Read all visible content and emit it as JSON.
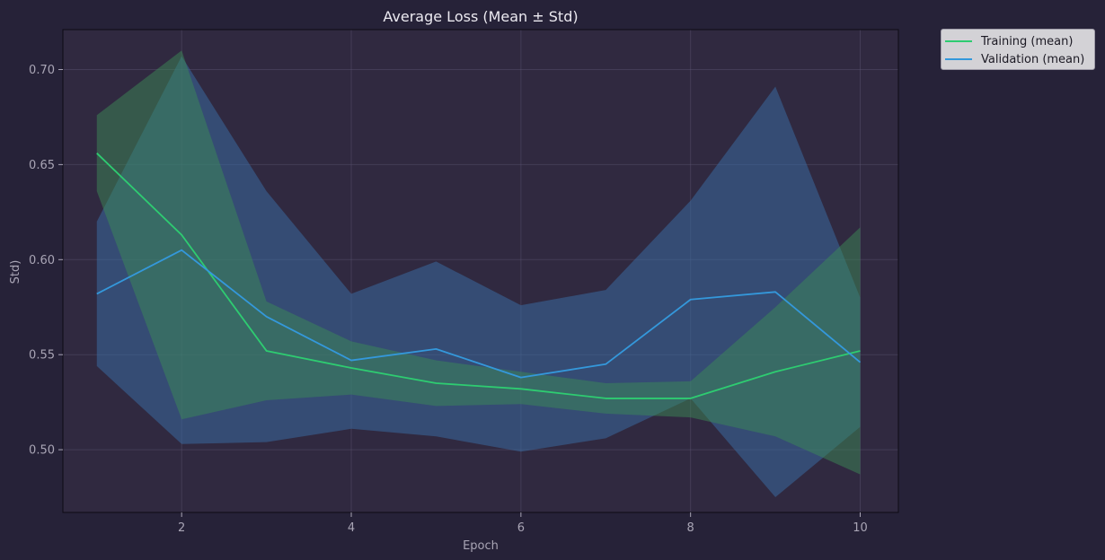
{
  "chart_data": {
    "type": "line",
    "title": "Average Loss (Mean ± Std)",
    "xlabel": "Epoch",
    "ylabel": "Std)",
    "xlim": [
      0.6,
      10.45
    ],
    "ylim": [
      0.467,
      0.721
    ],
    "xticks": [
      2,
      4,
      6,
      8,
      10
    ],
    "xtick_labels": [
      "2",
      "4",
      "6",
      "8",
      "10"
    ],
    "yticks": [
      0.5,
      0.55,
      0.6,
      0.65,
      0.7
    ],
    "ytick_labels": [
      "0.50",
      "0.55",
      "0.60",
      "0.65",
      "0.70"
    ],
    "grid": true,
    "legend_position": "outside-top-right",
    "x": [
      1,
      2,
      3,
      4,
      5,
      6,
      7,
      8,
      9,
      10
    ],
    "series": [
      {
        "name": "Training (mean)",
        "color": "#2ecc71",
        "band_color": "#3c8a55",
        "values": [
          0.656,
          0.613,
          0.552,
          0.543,
          0.535,
          0.532,
          0.527,
          0.527,
          0.541,
          0.552
        ],
        "lower": [
          0.636,
          0.516,
          0.526,
          0.529,
          0.523,
          0.524,
          0.519,
          0.517,
          0.507,
          0.487
        ],
        "upper": [
          0.676,
          0.71,
          0.578,
          0.557,
          0.547,
          0.541,
          0.535,
          0.536,
          0.575,
          0.617
        ]
      },
      {
        "name": "Validation (mean)",
        "color": "#3498db",
        "band_color": "#3a6fa8",
        "values": [
          0.582,
          0.605,
          0.57,
          0.547,
          0.553,
          0.538,
          0.545,
          0.579,
          0.583,
          0.546
        ],
        "lower": [
          0.544,
          0.503,
          0.504,
          0.511,
          0.507,
          0.499,
          0.506,
          0.527,
          0.475,
          0.512
        ],
        "upper": [
          0.62,
          0.707,
          0.636,
          0.582,
          0.599,
          0.576,
          0.584,
          0.631,
          0.691,
          0.58
        ]
      }
    ]
  }
}
